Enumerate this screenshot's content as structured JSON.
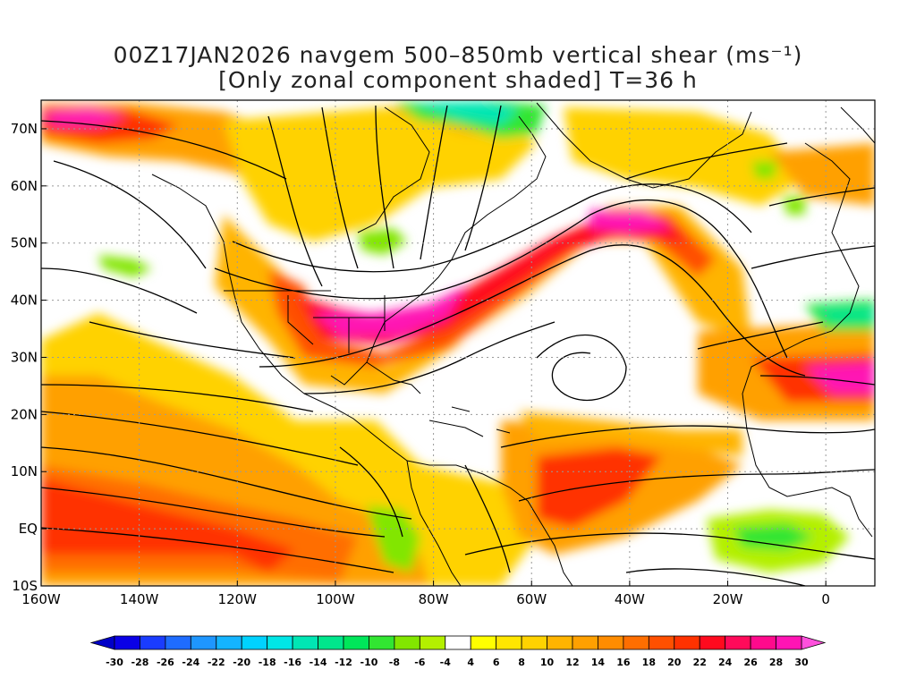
{
  "title": {
    "line1": "00Z17JAN2026 navgem 500–850mb vertical shear (ms⁻¹)",
    "line2": "[Only zonal component shaded] T=36 h"
  },
  "axes": {
    "lon_labels": [
      "160W",
      "140W",
      "120W",
      "100W",
      "80W",
      "60W",
      "40W",
      "20W",
      "0"
    ],
    "lat_labels": [
      "70N",
      "60N",
      "50N",
      "40N",
      "30N",
      "20N",
      "10N",
      "EQ",
      "10S"
    ],
    "lon_range": [
      -160,
      10
    ],
    "lat_range": [
      -10,
      75
    ]
  },
  "colorbar": {
    "labels": [
      "-30",
      "-28",
      "-26",
      "-24",
      "-22",
      "-20",
      "-18",
      "-16",
      "-14",
      "-12",
      "-10",
      "-8",
      "-6",
      "-4",
      "4",
      "6",
      "8",
      "10",
      "12",
      "14",
      "16",
      "18",
      "20",
      "22",
      "24",
      "26",
      "28",
      "30"
    ],
    "colors": [
      "#0a00e6",
      "#1a3cff",
      "#1e6cff",
      "#1e96ff",
      "#14b4ff",
      "#00d2ff",
      "#00e6e6",
      "#00e6b4",
      "#00e68c",
      "#00e65a",
      "#32e632",
      "#82e600",
      "#b4f000",
      "#ffffff",
      "#ffff00",
      "#ffe600",
      "#ffd200",
      "#ffb400",
      "#ffa000",
      "#ff8c00",
      "#ff6e00",
      "#ff5000",
      "#ff3200",
      "#ff0a1e",
      "#ff0a5a",
      "#ff0a8c",
      "#ff14b4"
    ],
    "arrow_left_color": "#0000c8",
    "arrow_right_color": "#ff50dc"
  }
}
